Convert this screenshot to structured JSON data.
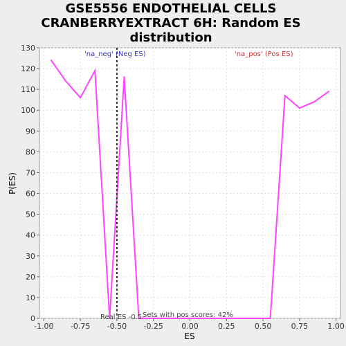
{
  "chart_data": {
    "type": "line",
    "title_lines": [
      "GSE5556 ENDOTHELIAL CELLS",
      "CRANBERRYEXTRACT 6H: Random ES",
      "distribution"
    ],
    "xlabel": "ES",
    "ylabel": "P(ES)",
    "xlim": [
      -1.03,
      1.03
    ],
    "ylim": [
      0,
      130
    ],
    "xticks": [
      -1.0,
      -0.75,
      -0.5,
      -0.25,
      0.0,
      0.25,
      0.5,
      0.75,
      1.0
    ],
    "xtick_labels": [
      "-1.00",
      "-0.75",
      "-0.50",
      "-0.25",
      "0.00",
      "0.25",
      "0.50",
      "0.75",
      "1.00"
    ],
    "yticks": [
      0,
      10,
      20,
      30,
      40,
      50,
      60,
      70,
      80,
      90,
      100,
      110,
      120,
      130
    ],
    "grid": true,
    "series": [
      {
        "color": "#ff44ff",
        "x": [
          -0.95,
          -0.85,
          -0.75,
          -0.65,
          -0.55,
          -0.45,
          -0.35,
          -0.25,
          -0.15,
          -0.05,
          0.05,
          0.15,
          0.25,
          0.35,
          0.45,
          0.55,
          0.65,
          0.75,
          0.85,
          0.95
        ],
        "y": [
          124,
          114,
          106,
          119,
          0,
          116,
          0,
          0,
          0,
          0,
          0,
          0,
          0,
          0,
          0,
          0,
          107,
          101,
          104,
          109
        ]
      }
    ],
    "real_es": -0.5,
    "annotations": {
      "neg_label": "'na_neg' (Neg ES)",
      "pos_label": "'na_pos' (Pos ES)",
      "real_es_label": "Real ES -0.5",
      "pos_scores_label": "Sets with pos scores: 42%"
    },
    "colors": {
      "neg": "#3333cc",
      "pos": "#cc3333",
      "line": "#ff44ff",
      "real_es": "#333333"
    }
  }
}
